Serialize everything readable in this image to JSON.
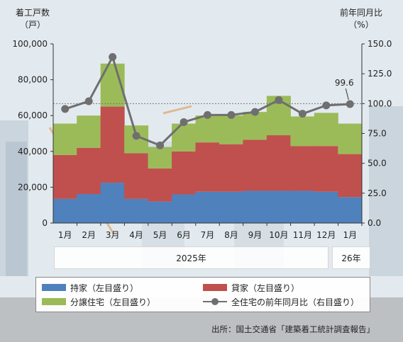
{
  "left_axis_title": [
    "着工戸数",
    "（戸）"
  ],
  "right_axis_title": [
    "前年同月比",
    "（%）"
  ],
  "year_labels": [
    "2025年",
    "26年"
  ],
  "legend": {
    "owned": "持家（左目盛り）",
    "rental": "貸家（左目盛り）",
    "condo": "分譲住宅（左目盛り）",
    "yoy": "全住宅の前年同月比（右目盛り）"
  },
  "source": "出所：国土交通省「建築着工統計調査報告」",
  "colors": {
    "owned": "#4f81bd",
    "rental": "#c0504d",
    "condo": "#9bbb59",
    "yoy": "#6f6f6f"
  },
  "chart_data": {
    "type": "bar",
    "stacked": true,
    "categories": [
      "1月",
      "2月",
      "3月",
      "4月",
      "5月",
      "6月",
      "7月",
      "8月",
      "9月",
      "10月",
      "11月",
      "12月",
      "1月"
    ],
    "series": [
      {
        "name": "持家（左目盛り）",
        "values": [
          13500,
          16200,
          22500,
          13500,
          12000,
          16000,
          17500,
          17500,
          18000,
          18000,
          18000,
          17500,
          14500
        ]
      },
      {
        "name": "貸家（左目盛り）",
        "values": [
          24500,
          25800,
          42500,
          25500,
          18500,
          24000,
          27500,
          26500,
          28500,
          31000,
          25000,
          25500,
          24000
        ]
      },
      {
        "name": "分譲住宅（左目盛り）",
        "values": [
          17500,
          18000,
          24000,
          15500,
          12000,
          15500,
          15000,
          16000,
          15500,
          22000,
          16500,
          18500,
          17000
        ]
      }
    ],
    "line": {
      "name": "全住宅の前年同月比（右目盛り）",
      "axis": "right",
      "values": [
        95.5,
        102.0,
        139.0,
        73.0,
        65.0,
        84.5,
        90.5,
        90.5,
        93.0,
        103.0,
        91.5,
        98.5,
        99.6
      ]
    },
    "line_label": "99.6",
    "reference_line_right": 100,
    "ylim_left": [
      0,
      100000
    ],
    "yticks_left": [
      "0",
      "20,000",
      "40,000",
      "60,000",
      "80,000",
      "100,000"
    ],
    "ylim_right": [
      0,
      150
    ],
    "yticks_right": [
      "0.0",
      "25.0",
      "50.0",
      "75.0",
      "100.0",
      "125.0",
      "150.0"
    ],
    "grid": false
  }
}
